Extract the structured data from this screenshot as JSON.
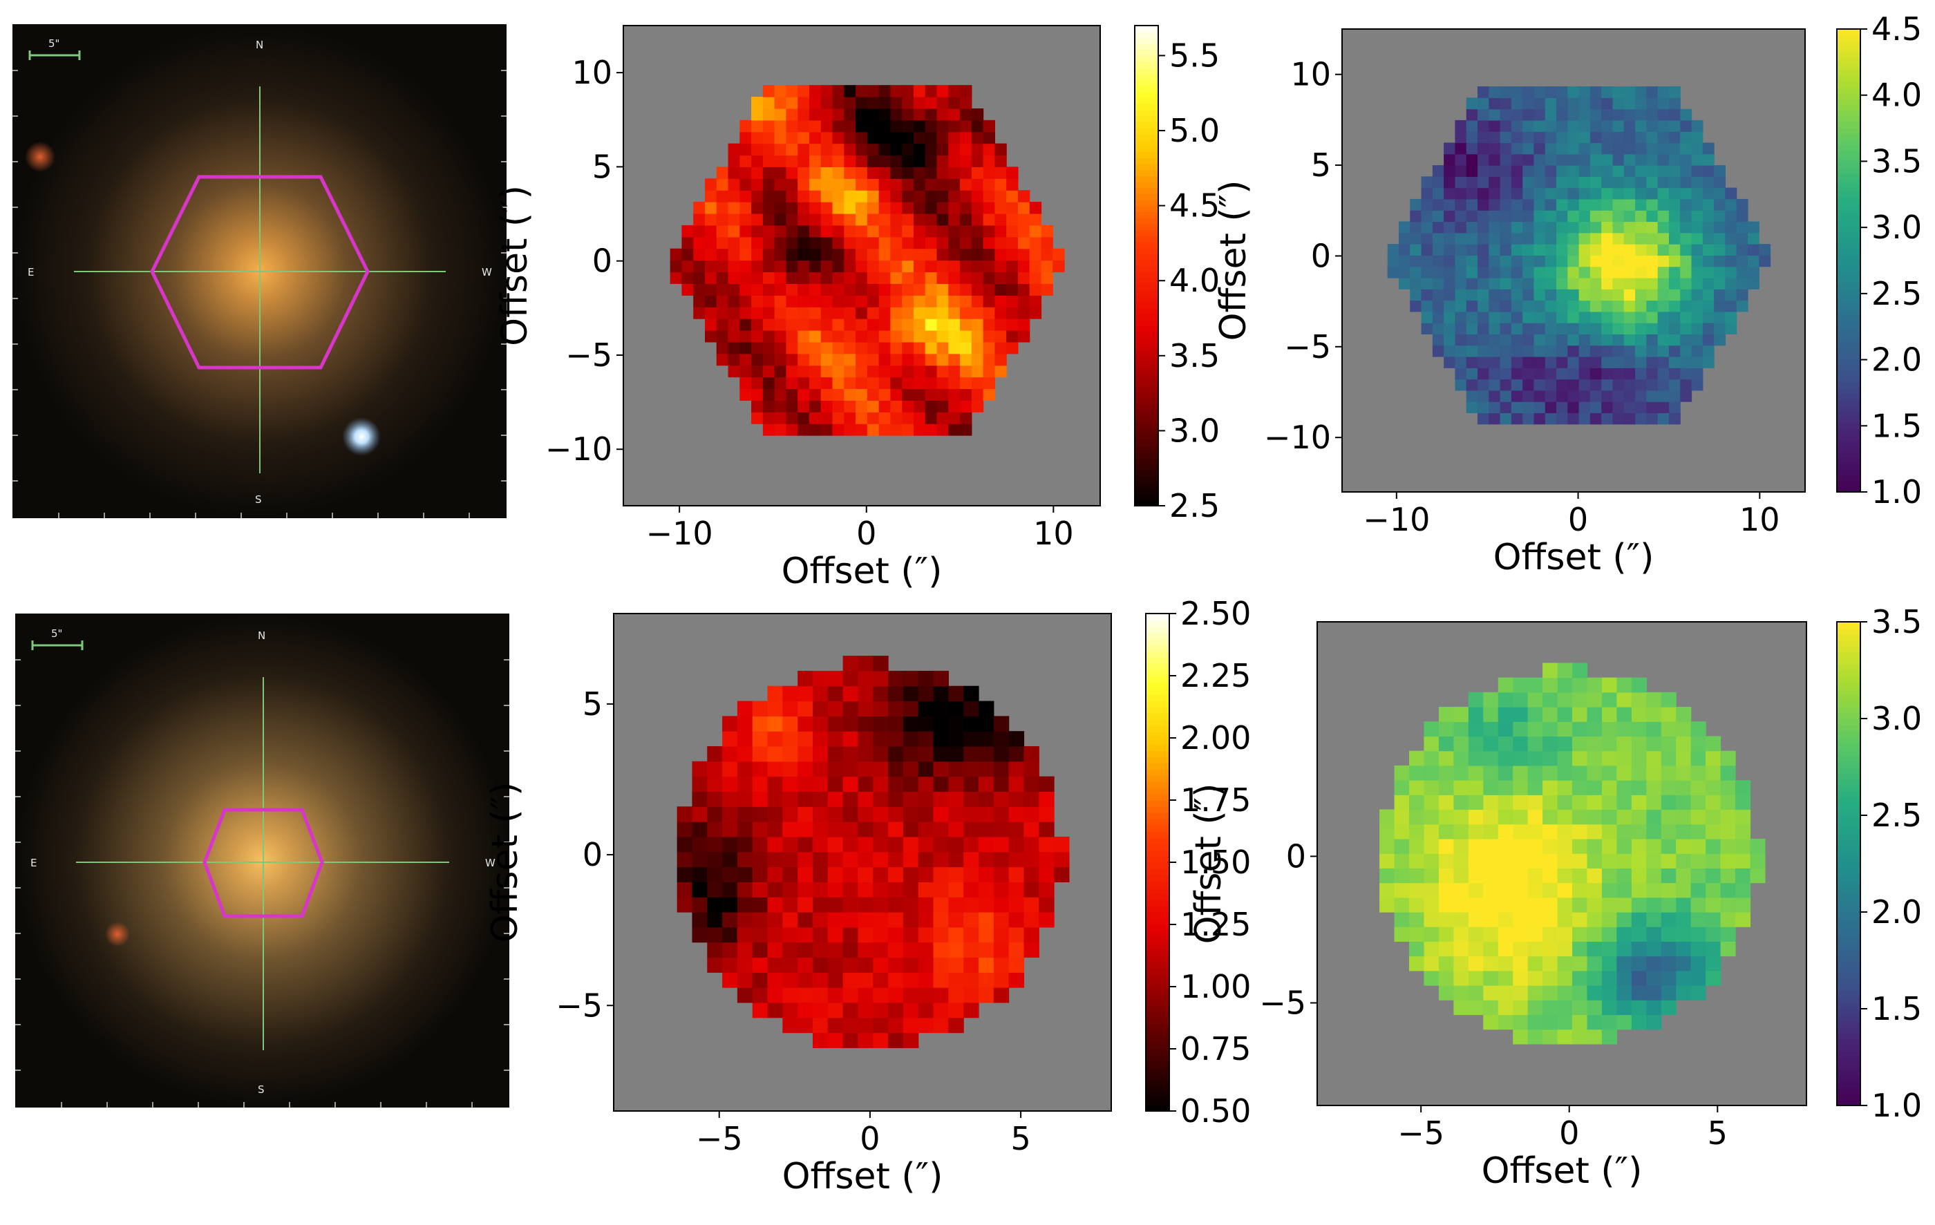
{
  "colors": {
    "background": "#ffffff",
    "masked": "#808080",
    "sky": "#0b0a07",
    "crosshair": "#7ec87a",
    "aperture": "#d836c8"
  },
  "photos": [
    {
      "scalebar": "5\"",
      "compass": {
        "n": "N",
        "e": "E",
        "w": "W",
        "s": "S"
      },
      "bright_star": true
    },
    {
      "scalebar": "5\"",
      "compass": {
        "n": "N",
        "e": "E",
        "w": "W",
        "s": "S"
      },
      "bright_star": false
    }
  ],
  "chart_data": [
    {
      "type": "heatmap",
      "colormap": "hot",
      "xlabel": "Offset (″)",
      "ylabel": "Offset (″)",
      "xlim": [
        -13,
        12.5
      ],
      "ylim": [
        -13,
        12.5
      ],
      "xticks": [
        "−10",
        "0",
        "10"
      ],
      "yticks": [
        "−10",
        "−5",
        "0",
        "5",
        "10"
      ],
      "colorbar": {
        "range": [
          2.5,
          5.7
        ],
        "ticks": [
          "2.5",
          "3.0",
          "3.5",
          "4.0",
          "4.5",
          "5.0",
          "5.5"
        ]
      },
      "footprint": "hexagon",
      "radius": 10.5
    },
    {
      "type": "heatmap",
      "colormap": "viridis",
      "xlabel": "Offset (″)",
      "ylabel": "Offset (″)",
      "xlim": [
        -13,
        12.5
      ],
      "ylim": [
        -13,
        12.5
      ],
      "xticks": [
        "−10",
        "0",
        "10"
      ],
      "yticks": [
        "−10",
        "−5",
        "0",
        "5",
        "10"
      ],
      "colorbar": {
        "range": [
          1.0,
          4.5
        ],
        "ticks": [
          "1.0",
          "1.5",
          "2.0",
          "2.5",
          "3.0",
          "3.5",
          "4.0",
          "4.5"
        ]
      },
      "footprint": "hexagon",
      "radius": 10.5
    },
    {
      "type": "heatmap",
      "colormap": "hot",
      "xlabel": "Offset (″)",
      "ylabel": "Offset (″)",
      "xlim": [
        -8.5,
        8
      ],
      "ylim": [
        -8.5,
        8
      ],
      "xticks": [
        "−5",
        "0",
        "5"
      ],
      "yticks": [
        "−5",
        "0",
        "5"
      ],
      "colorbar": {
        "range": [
          0.5,
          2.5
        ],
        "ticks": [
          "0.50",
          "0.75",
          "1.00",
          "1.25",
          "1.50",
          "1.75",
          "2.00",
          "2.25",
          "2.50"
        ]
      },
      "footprint": "disk",
      "radius": 6.4
    },
    {
      "type": "heatmap",
      "colormap": "viridis",
      "xlabel": "Offset (″)",
      "ylabel": "Offset (″)",
      "xlim": [
        -8.5,
        8
      ],
      "ylim": [
        -8.5,
        8
      ],
      "xticks": [
        "−5",
        "0",
        "5"
      ],
      "yticks": [
        "−5",
        "0"
      ],
      "colorbar": {
        "range": [
          1.0,
          3.5
        ],
        "ticks": [
          "1.0",
          "1.5",
          "2.0",
          "2.5",
          "3.0",
          "3.5"
        ]
      },
      "footprint": "disk",
      "radius": 6.4
    }
  ]
}
